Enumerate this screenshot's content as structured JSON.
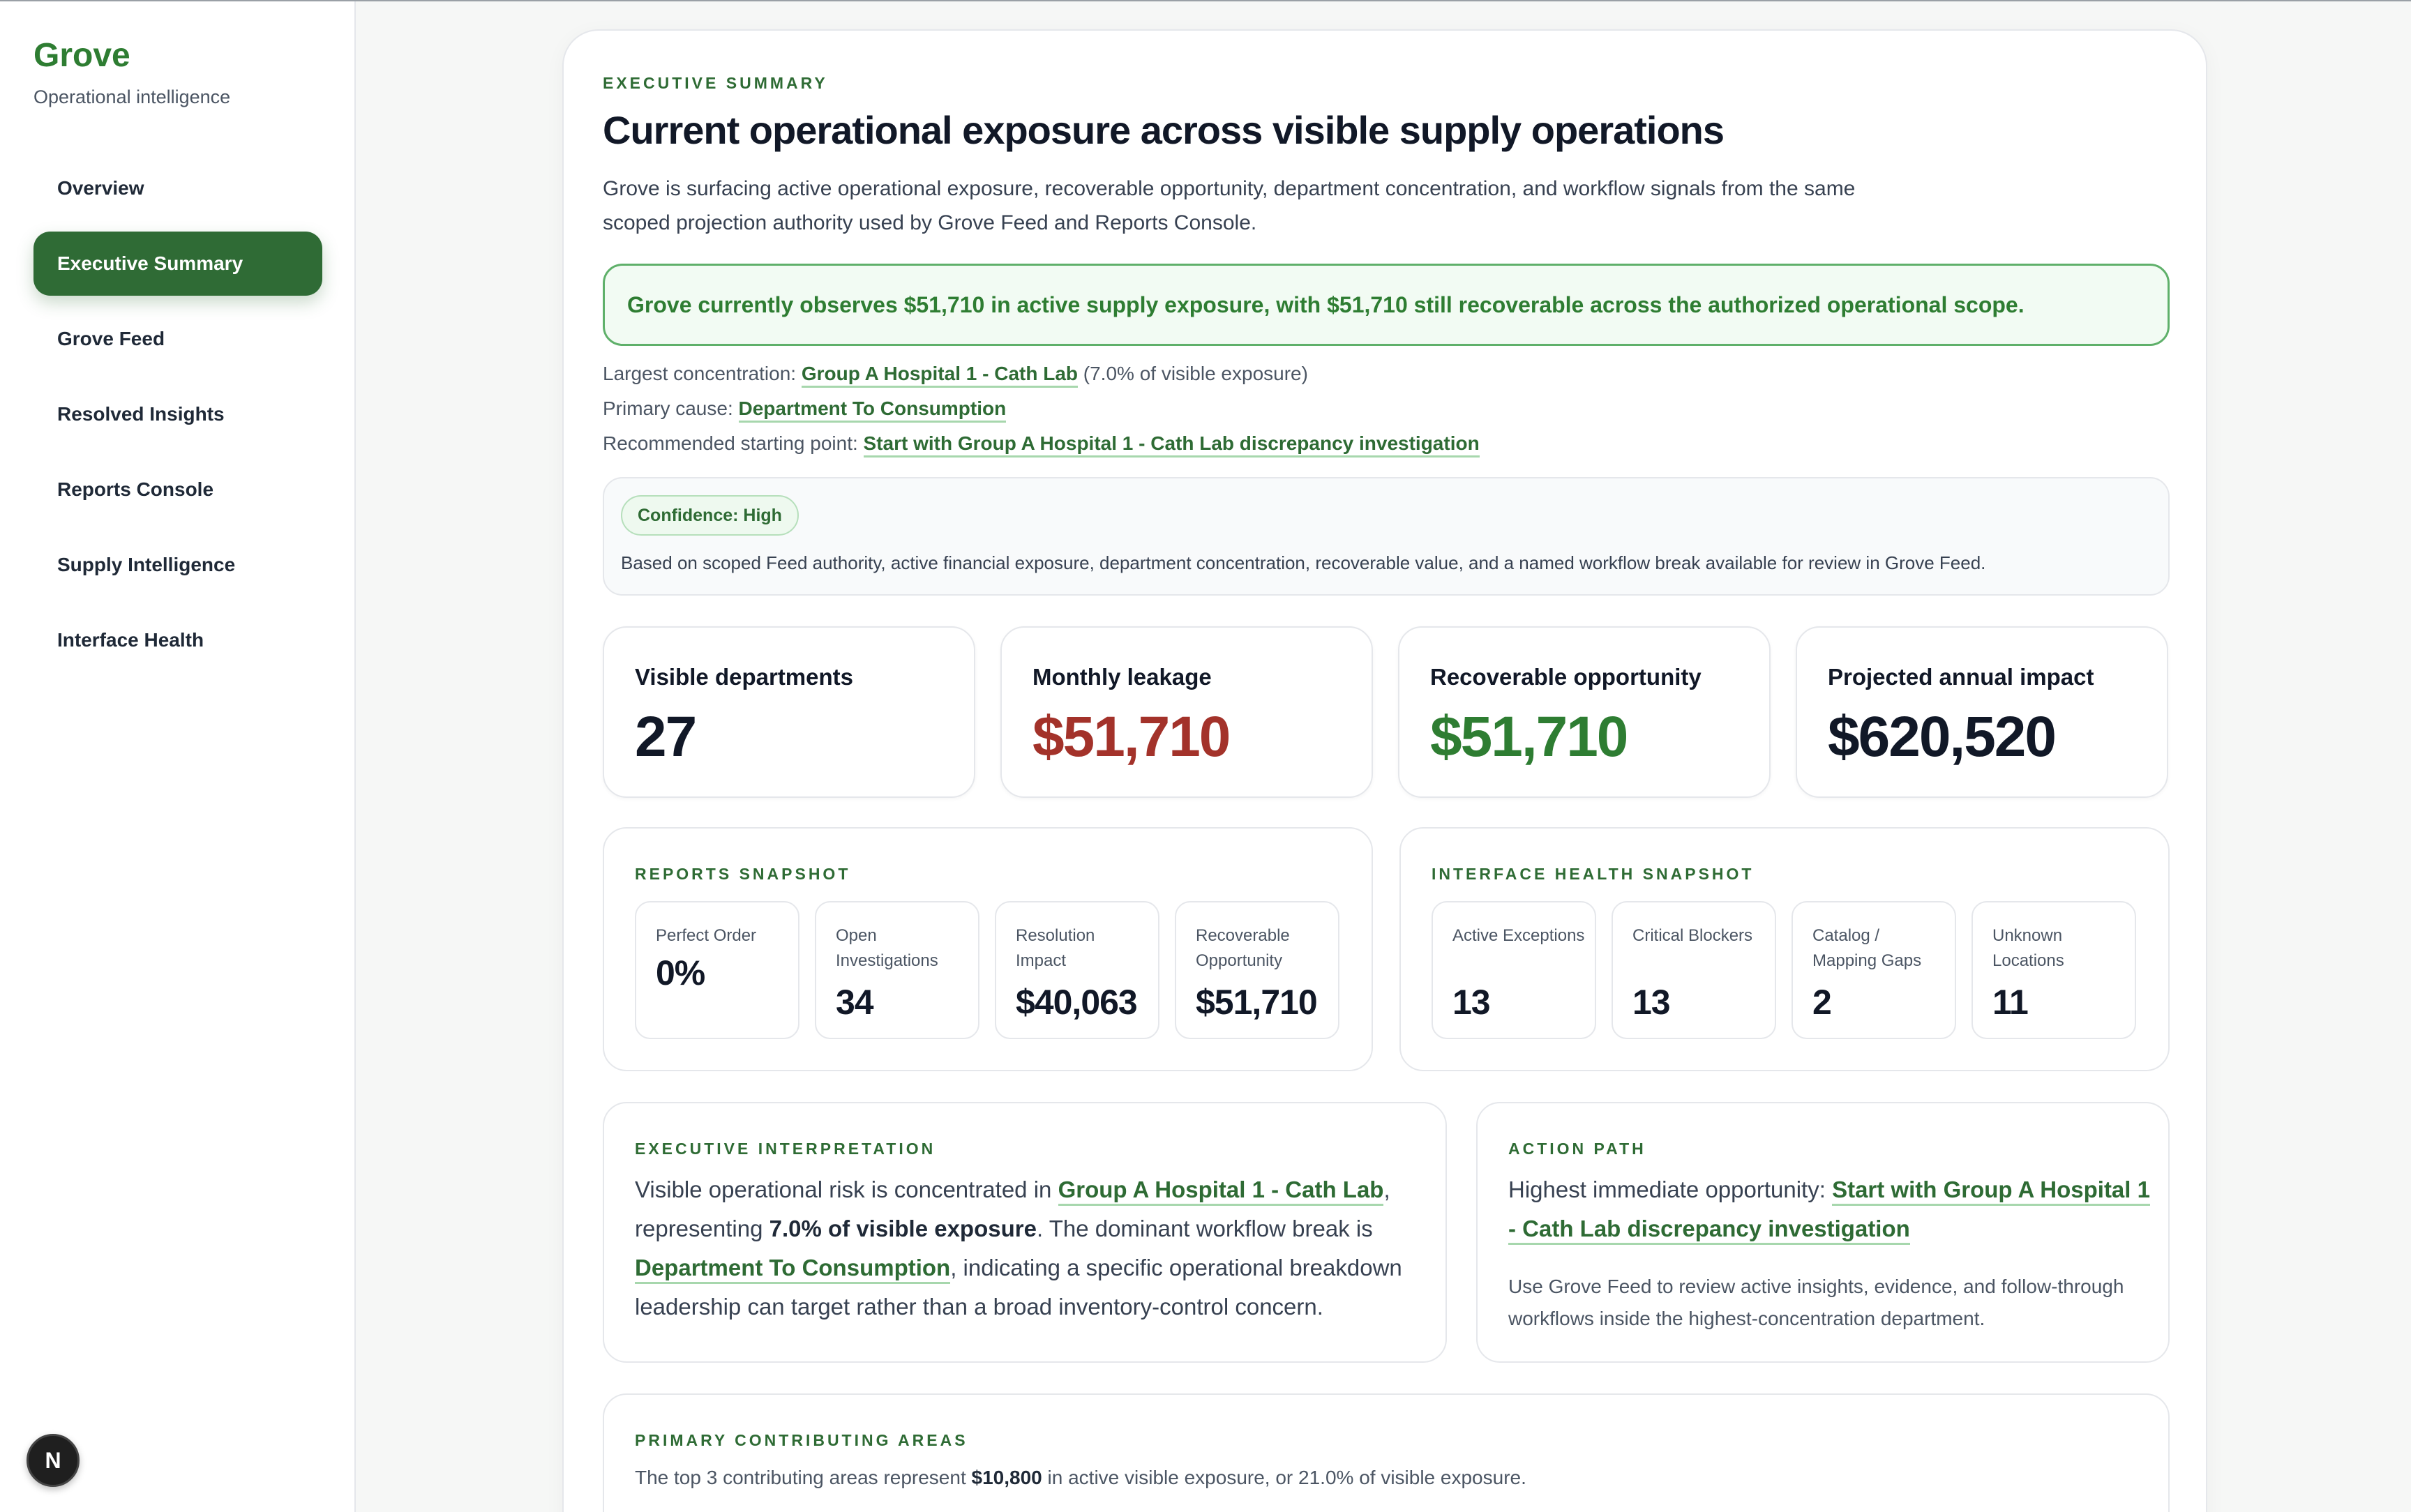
{
  "sidebar": {
    "brand": "Grove",
    "brand_sub": "Operational intelligence",
    "items": [
      {
        "label": "Overview"
      },
      {
        "label": "Executive Summary"
      },
      {
        "label": "Grove Feed"
      },
      {
        "label": "Resolved Insights"
      },
      {
        "label": "Reports Console"
      },
      {
        "label": "Supply Intelligence"
      },
      {
        "label": "Interface Health"
      }
    ],
    "active_index": 1,
    "badge": "N"
  },
  "header": {
    "eyebrow": "EXECUTIVE SUMMARY",
    "title": "Current operational exposure across visible supply operations",
    "description": "Grove is surfacing active operational exposure, recoverable opportunity, department concentration, and workflow signals from the same scoped projection authority used by Grove Feed and Reports Console."
  },
  "banner": "Grove currently observes $51,710 in active supply exposure, with $51,710 still recoverable across the authorized operational scope.",
  "details": {
    "concentration_label": "Largest concentration:",
    "concentration_link": "Group A Hospital 1 - Cath Lab",
    "concentration_note": "(7.0% of visible exposure)",
    "cause_label": "Primary cause:",
    "cause_link": "Department To Consumption",
    "start_label": "Recommended starting point:",
    "start_link": "Start with Group A Hospital 1 - Cath Lab discrepancy investigation"
  },
  "confidence": {
    "pill": "Confidence: High",
    "text": "Based on scoped Feed authority, active financial exposure, department concentration, recoverable value, and a named workflow break available for review in Grove Feed."
  },
  "kpis": [
    {
      "label": "Visible departments",
      "value": "27",
      "color": "#111827"
    },
    {
      "label": "Monthly leakage",
      "value": "$51,710",
      "color": "#a3322a"
    },
    {
      "label": "Recoverable opportunity",
      "value": "$51,710",
      "color": "#2e7d32"
    },
    {
      "label": "Projected annual impact",
      "value": "$620,520",
      "color": "#111827"
    }
  ],
  "reports_snapshot": {
    "title": "REPORTS SNAPSHOT",
    "items": [
      {
        "label": "Perfect Order",
        "value": "0%"
      },
      {
        "label": "Open Investigations",
        "value": "34"
      },
      {
        "label": "Resolution Impact",
        "value": "$40,063"
      },
      {
        "label": "Recoverable Opportunity",
        "value": "$51,710"
      }
    ]
  },
  "interface_snapshot": {
    "title": "INTERFACE HEALTH SNAPSHOT",
    "items": [
      {
        "label": "Active Exceptions",
        "value": "13"
      },
      {
        "label": "Critical Blockers",
        "value": "13"
      },
      {
        "label": "Catalog / Mapping Gaps",
        "value": "2"
      },
      {
        "label": "Unknown Locations",
        "value": "11"
      }
    ]
  },
  "interpretation": {
    "title": "EXECUTIVE INTERPRETATION",
    "t1": "Visible operational risk is concentrated in ",
    "link1": "Group A Hospital 1 - Cath Lab",
    "t2": ", representing ",
    "strong": "7.0% of visible exposure",
    "t3": ". The dominant workflow break is ",
    "link2": "Department To Consumption",
    "t4": ", indicating a specific operational breakdown leadership can target rather than a broad inventory-control concern."
  },
  "action_path": {
    "title": "ACTION PATH",
    "lead": "Highest immediate opportunity: ",
    "link": "Start with Group A Hospital 1 - Cath Lab discrepancy investigation",
    "note": "Use Grove Feed to review active insights, evidence, and follow-through workflows inside the highest-concentration department."
  },
  "contributing": {
    "title": "PRIMARY CONTRIBUTING AREAS",
    "t1": "The top 3 contributing areas represent ",
    "amount": "$10,800",
    "t2": " in active visible exposure, or 21.0% of visible exposure."
  }
}
